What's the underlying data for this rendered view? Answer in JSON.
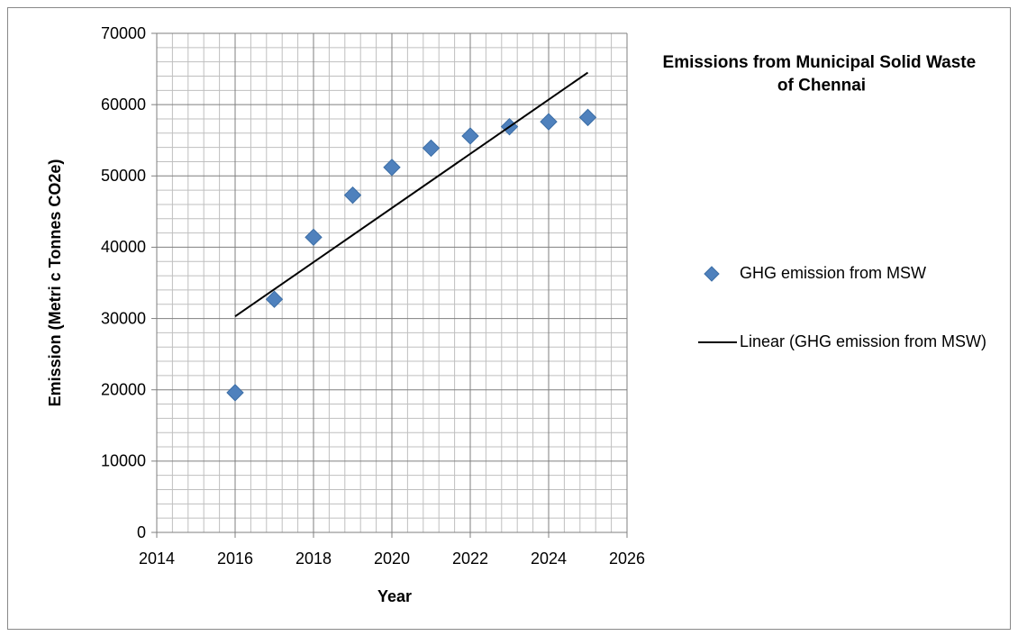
{
  "chart_data": {
    "type": "scatter",
    "title": "Emissions from Municipal Solid Waste  of Chennai",
    "xlabel": "Year",
    "ylabel": "Emission (Metri c Tonnes CO2e)",
    "xlim": [
      2014,
      2026
    ],
    "xticks": [
      2014,
      2016,
      2018,
      2020,
      2022,
      2024,
      2026
    ],
    "ylim": [
      0,
      70000
    ],
    "yticks": [
      0,
      10000,
      20000,
      30000,
      40000,
      50000,
      60000,
      70000
    ],
    "grid": true,
    "minor_grid": true,
    "legend": "right",
    "series": [
      {
        "name": "GHG emission from MSW",
        "color": "#4f81bd",
        "marker": "diamond",
        "x": [
          2016,
          2017,
          2018,
          2019,
          2020,
          2021,
          2022,
          2023,
          2024,
          2025
        ],
        "values": [
          19600,
          32700,
          41400,
          47300,
          51200,
          53900,
          55600,
          56900,
          57600,
          58200
        ]
      },
      {
        "name": "Linear (GHG emission from MSW)",
        "color": "#000000",
        "marker": "line",
        "x": [
          2016,
          2025
        ],
        "values": [
          30300,
          64500
        ]
      }
    ]
  }
}
